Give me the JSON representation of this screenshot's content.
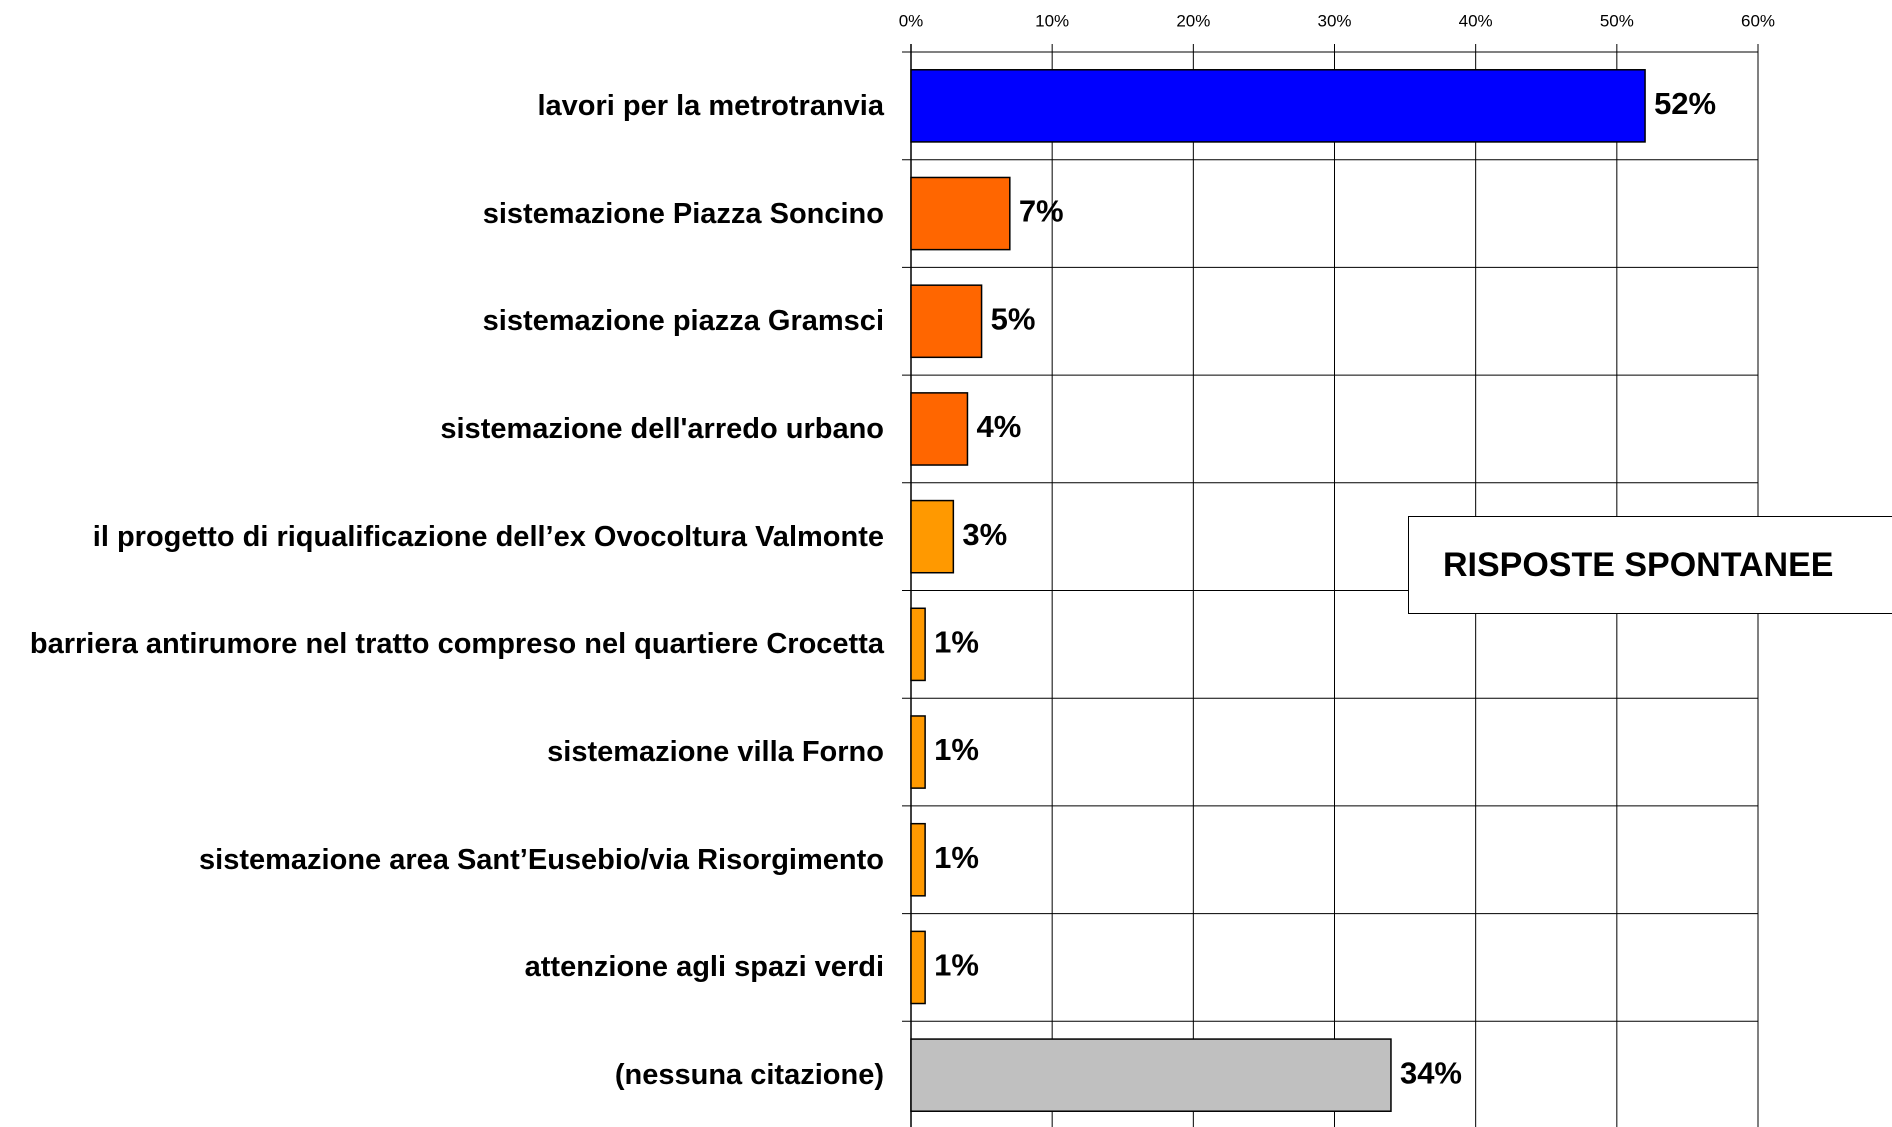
{
  "chart_data": {
    "type": "hbar",
    "annotation": "RISPOSTE SPONTANEE",
    "categories": [
      "lavori per la metrotranvia ",
      "sistemazione Piazza Soncino",
      "sistemazione piazza Gramsci",
      "sistemazione dell'arredo urbano",
      "il progetto di riqualificazione dell’ex Ovocoltura Valmonte",
      "barriera antirumore nel tratto compreso nel quartiere Crocetta",
      "sistemazione villa Forno",
      "sistemazione area Sant’Eusebio/via Risorgimento",
      "attenzione agli spazi verdi",
      "(nessuna citazione)"
    ],
    "values": [
      52,
      7,
      5,
      4,
      3,
      1,
      1,
      1,
      1,
      34
    ],
    "value_labels": [
      "52%",
      "7%",
      "5%",
      "4%",
      "3%",
      "1%",
      "1%",
      "1%",
      "1%",
      "34%"
    ],
    "colors": [
      "#0000ff",
      "#ff6600",
      "#ff6600",
      "#ff6600",
      "#ff9900",
      "#ff9900",
      "#ff9900",
      "#ff9900",
      "#ff9900",
      "#c0c0c0"
    ],
    "xlim": [
      0,
      60
    ],
    "xticks": [
      {
        "value": 0,
        "label": "0%"
      },
      {
        "value": 10,
        "label": "10%"
      },
      {
        "value": 20,
        "label": "20%"
      },
      {
        "value": 30,
        "label": "30%"
      },
      {
        "value": 40,
        "label": "40%"
      },
      {
        "value": 50,
        "label": "50%"
      },
      {
        "value": 60,
        "label": "60%"
      }
    ],
    "grid": true
  }
}
